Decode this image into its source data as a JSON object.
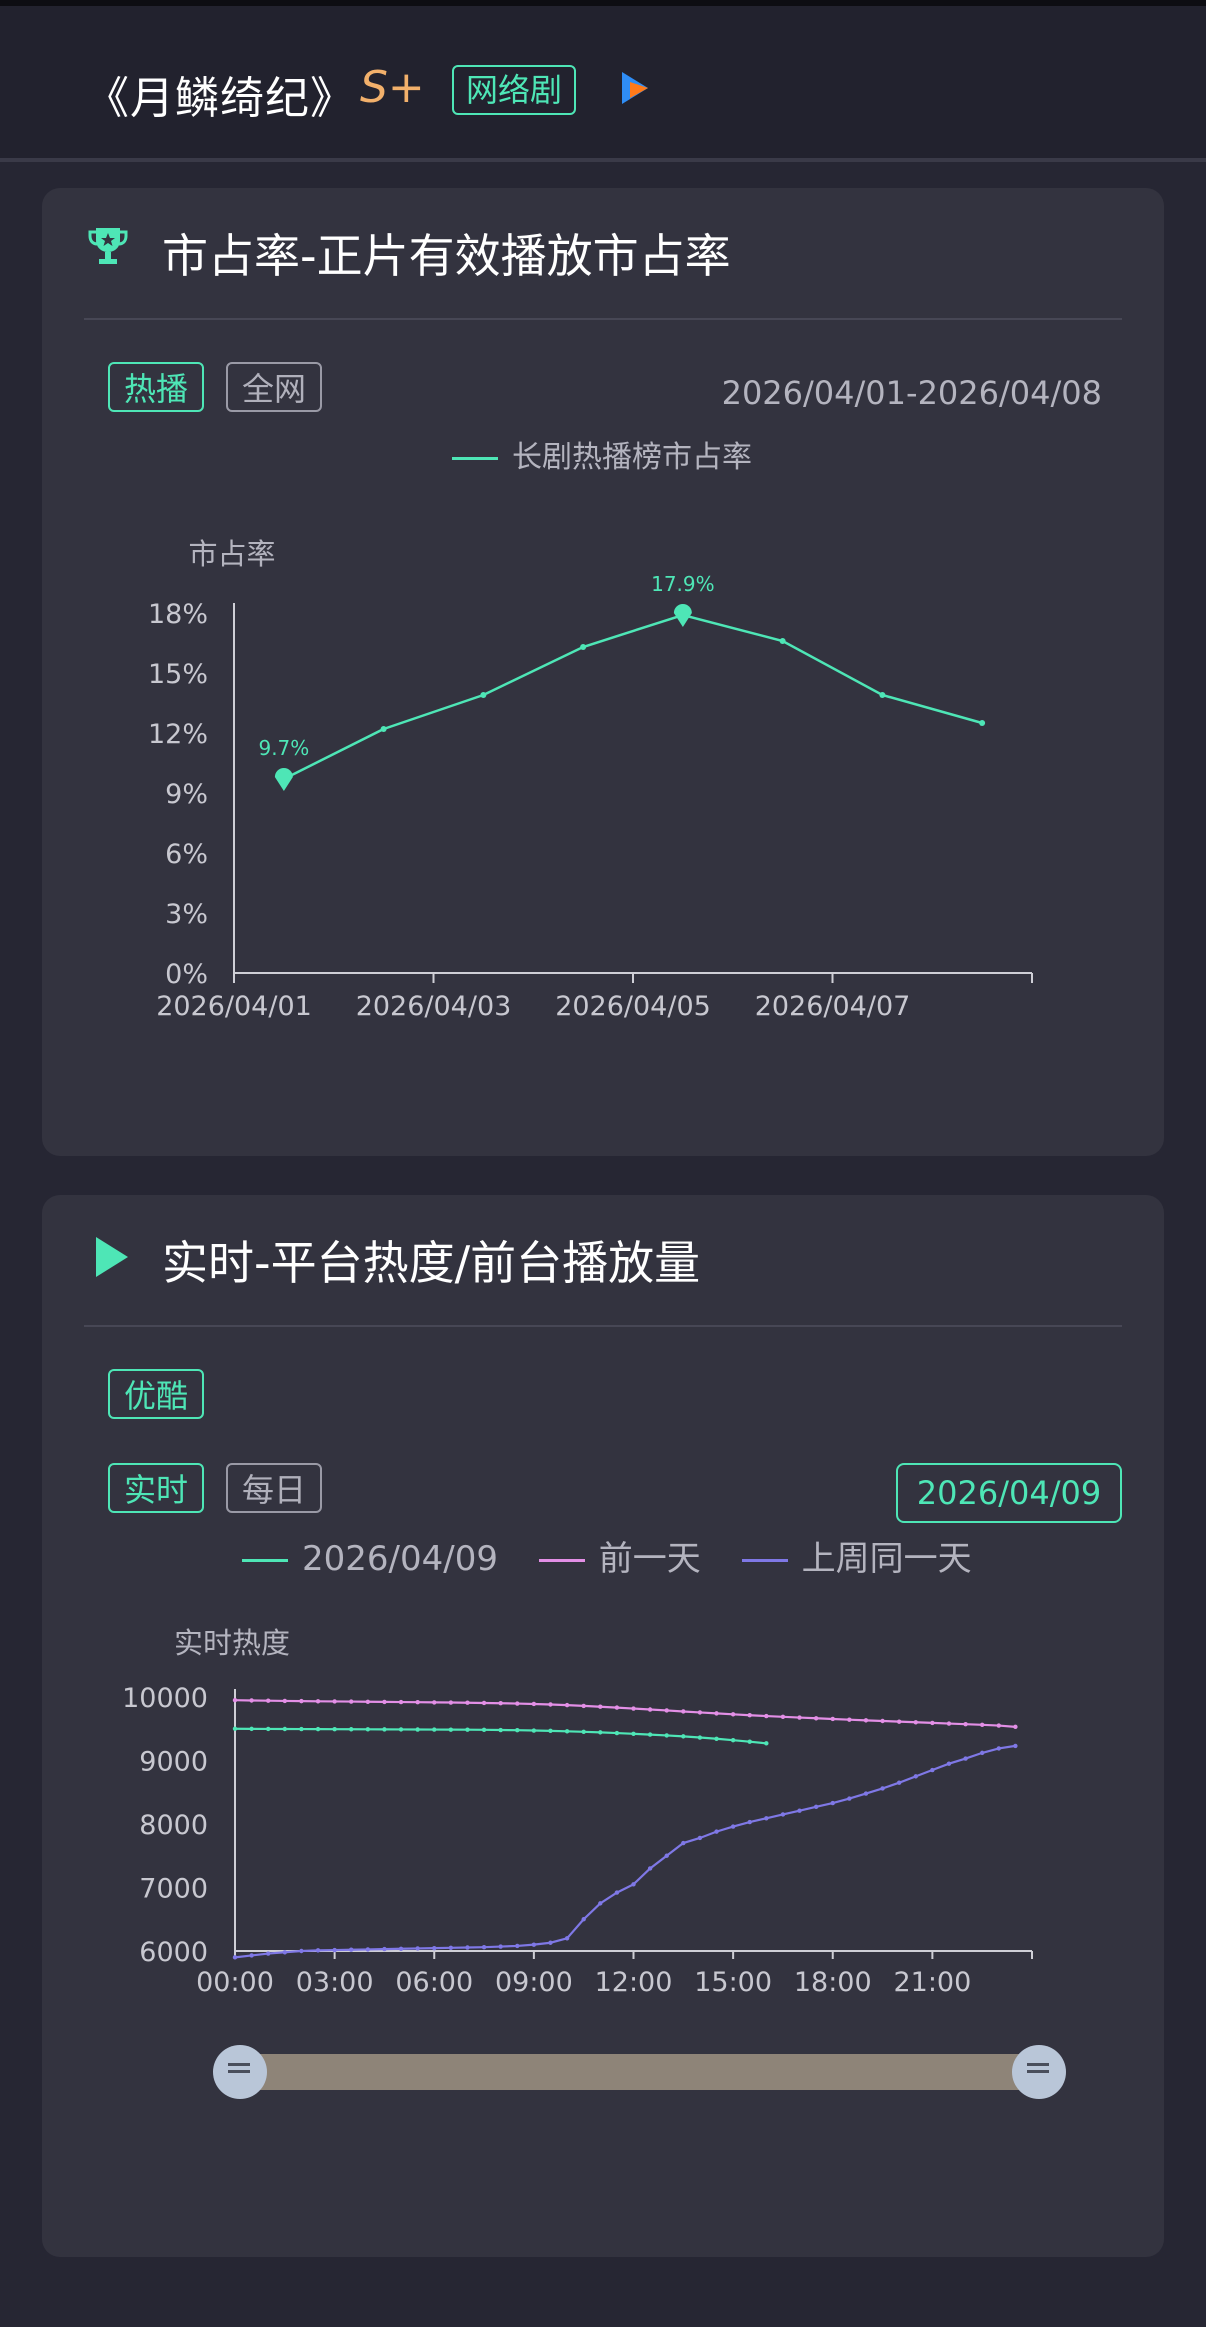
{
  "header": {
    "title": "《月鳞绮纪》",
    "grade": "S+",
    "tag": "网络剧",
    "platform_icon": "youku-play-icon"
  },
  "market_share": {
    "title": "市占率-正片有效播放市占率",
    "icon": "trophy-icon",
    "chips": [
      "热播",
      "全网"
    ],
    "active_chip": "热播",
    "date_range": "2026/04/01-2026/04/08"
  },
  "realtime": {
    "title": "实时-平台热度/前台播放量",
    "icon": "play-icon",
    "platform_chip": "优酷",
    "chips": [
      "实时",
      "每日"
    ],
    "active_chip": "实时",
    "date": "2026/04/09"
  },
  "colors": {
    "accent": "#4ee6b6",
    "prev_day": "#e38fe6",
    "last_week": "#7f78e6"
  },
  "chart_data": [
    {
      "type": "line",
      "ylabel": "市占率",
      "x": [
        "2026/04/01",
        "2026/04/02",
        "2026/04/03",
        "2026/04/04",
        "2026/04/05",
        "2026/04/06",
        "2026/04/07",
        "2026/04/08"
      ],
      "xticks": [
        "2026/04/01",
        "2026/04/03",
        "2026/04/05",
        "2026/04/07"
      ],
      "yticks": [
        "0%",
        "3%",
        "6%",
        "9%",
        "12%",
        "15%",
        "18%"
      ],
      "ylim": [
        0,
        18
      ],
      "series": [
        {
          "name": "长剧热播榜市占率",
          "values": [
            9.7,
            12.2,
            13.9,
            16.3,
            17.9,
            16.6,
            13.9,
            12.5
          ]
        }
      ],
      "annotations": [
        {
          "x": "2026/04/01",
          "label": "9.7%"
        },
        {
          "x": "2026/04/05",
          "label": "17.9%"
        }
      ],
      "legend": "top-center"
    },
    {
      "type": "line",
      "ylabel": "实时热度",
      "xticks": [
        "00:00",
        "03:00",
        "06:00",
        "09:00",
        "12:00",
        "15:00",
        "18:00",
        "21:00"
      ],
      "xlim_hours": [
        0,
        24
      ],
      "yticks": [
        "6000",
        "7000",
        "8000",
        "9000",
        "10000"
      ],
      "ylim": [
        6000,
        10000
      ],
      "series": [
        {
          "name": "2026/04/09",
          "start_hour": 0,
          "step_hours": 0.5,
          "values": [
            9500,
            9498,
            9497,
            9496,
            9495,
            9494,
            9493,
            9492,
            9491,
            9490,
            9489,
            9488,
            9487,
            9486,
            9485,
            9483,
            9480,
            9477,
            9472,
            9467,
            9460,
            9452,
            9443,
            9432,
            9420,
            9408,
            9395,
            9380,
            9362,
            9342,
            9320,
            9296,
            9270
          ]
        },
        {
          "name": "前一天",
          "start_hour": 0,
          "step_hours": 0.5,
          "values": [
            9950,
            9945,
            9942,
            9938,
            9935,
            9932,
            9930,
            9928,
            9925,
            9923,
            9920,
            9918,
            9915,
            9913,
            9910,
            9906,
            9902,
            9897,
            9890,
            9882,
            9872,
            9860,
            9847,
            9833,
            9818,
            9803,
            9788,
            9772,
            9757,
            9742,
            9727,
            9713,
            9700,
            9688,
            9676,
            9665,
            9654,
            9643,
            9632,
            9622,
            9612,
            9602,
            9592,
            9582,
            9572,
            9562,
            9550,
            9530
          ]
        },
        {
          "name": "上周同一天",
          "start_hour": 0,
          "step_hours": 0.5,
          "values": [
            5900,
            5930,
            5960,
            5980,
            6000,
            6010,
            6015,
            6020,
            6025,
            6030,
            6035,
            6040,
            6045,
            6050,
            6055,
            6060,
            6070,
            6080,
            6100,
            6130,
            6200,
            6500,
            6750,
            6920,
            7050,
            7300,
            7500,
            7700,
            7780,
            7880,
            7960,
            8030,
            8090,
            8150,
            8210,
            8270,
            8330,
            8400,
            8480,
            8560,
            8650,
            8750,
            8850,
            8950,
            9030,
            9120,
            9190,
            9230
          ]
        }
      ],
      "legend": "top-center"
    }
  ]
}
